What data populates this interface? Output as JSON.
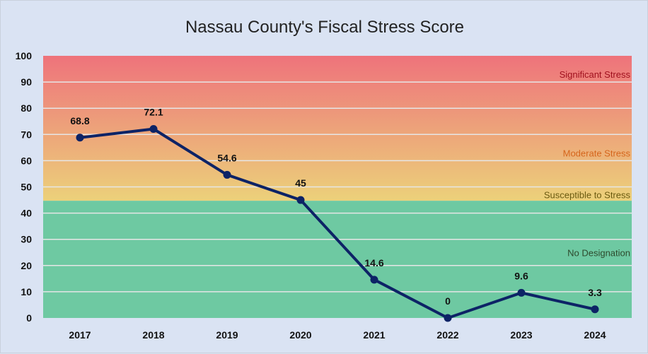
{
  "chart_data": {
    "type": "line",
    "title": "Nassau County's Fiscal Stress Score",
    "xlabel": "",
    "ylabel": "",
    "categories": [
      "2017",
      "2018",
      "2019",
      "2020",
      "2021",
      "2022",
      "2023",
      "2024"
    ],
    "series": [
      {
        "name": "Fiscal Stress Score",
        "values": [
          68.8,
          72.1,
          54.6,
          45,
          14.6,
          0,
          9.6,
          3.3
        ],
        "labels": [
          "68.8",
          "72.1",
          "54.6",
          "45",
          "14.6",
          "0",
          "9.6",
          "3.3"
        ],
        "color": "#0d2366"
      }
    ],
    "ylim": [
      0,
      100
    ],
    "yticks": [
      "0",
      "10",
      "20",
      "30",
      "40",
      "50",
      "60",
      "70",
      "80",
      "90",
      "100"
    ],
    "grid": true,
    "zones": [
      {
        "label": "Significant Stress",
        "label_value": 93,
        "color": "#a0101e"
      },
      {
        "label": "Moderate Stress",
        "label_value": 63,
        "color": "#d5661c"
      },
      {
        "label": "Susceptible to Stress",
        "label_value": 47,
        "color": "#6b5a10"
      },
      {
        "label": "No Designation",
        "label_value": 25,
        "color": "#2d4a2d"
      }
    ],
    "zone_boundary": 44.7,
    "colors": {
      "red": "#ee737b",
      "yellow": "#ecd17a",
      "green": "#6ec9a2",
      "background": "#dae3f3"
    }
  }
}
